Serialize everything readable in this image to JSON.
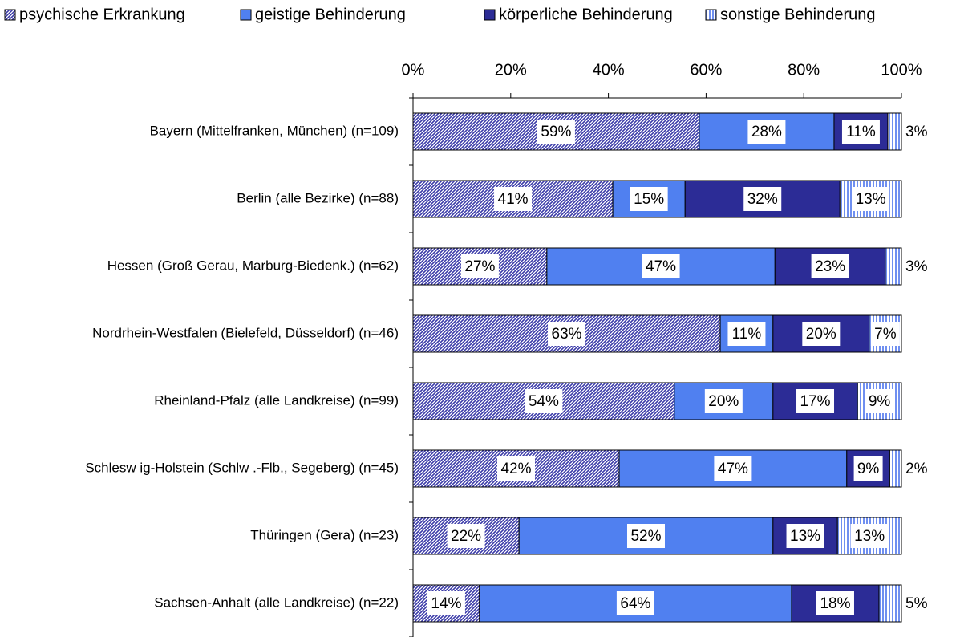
{
  "chart_data": {
    "type": "stacked-bar-horizontal",
    "categories": [
      "Bayern (Mittelfranken, München) (n=109)",
      "Berlin (alle Bezirke)  (n=88)",
      "Hessen (Groß Gerau, Marburg-Biedenk.) (n=62)",
      "Nordrhein-Westfalen (Bielefeld, Düsseldorf) (n=46)",
      "Rheinland-Pfalz (alle Landkreise)  (n=99)",
      "Schlesw ig-Holstein (Schlw .-Flb., Segeberg) (n=45)",
      "Thüringen (Gera) (n=23)",
      "Sachsen-Anhalt (alle Landkreise) (n=22)"
    ],
    "series": [
      {
        "name": "psychische Erkrankung",
        "color": "#3a3aa8",
        "pattern": "diagonal",
        "values": [
          58.6,
          40.9,
          27.4,
          62.9,
          53.5,
          42.2,
          21.7,
          13.6
        ],
        "value_labels": [
          "59%",
          "41%",
          "27%",
          "63%",
          "54%",
          "42%",
          "22%",
          "14%"
        ]
      },
      {
        "name": "geistige Behinderung",
        "color": "#5080f0",
        "pattern": "solid",
        "values": [
          27.6,
          14.8,
          46.7,
          10.8,
          20.2,
          46.6,
          52.0,
          63.9
        ],
        "value_labels": [
          "28%",
          "15%",
          "47%",
          "11%",
          "20%",
          "47%",
          "52%",
          "64%"
        ]
      },
      {
        "name": "körperliche Behinderung",
        "color": "#2c2c96",
        "pattern": "solid",
        "values": [
          11.0,
          31.7,
          22.6,
          19.7,
          17.3,
          8.8,
          13.2,
          17.9
        ],
        "value_labels": [
          "11%",
          "32%",
          "23%",
          "20%",
          "17%",
          "9%",
          "13%",
          "18%"
        ]
      },
      {
        "name": "sonstige Behinderung",
        "color": "#6f8ff0",
        "pattern": "vertical",
        "values": [
          2.8,
          12.6,
          3.3,
          6.6,
          9.0,
          2.4,
          13.1,
          4.6
        ],
        "value_labels": [
          "3%",
          "13%",
          "3%",
          "7%",
          "9%",
          "2%",
          "13%",
          "5%"
        ]
      }
    ],
    "xlim": [
      0,
      100
    ],
    "xticks": [
      {
        "value": 0,
        "label": "0%"
      },
      {
        "value": 20,
        "label": "20%"
      },
      {
        "value": 40,
        "label": "40%"
      },
      {
        "value": 60,
        "label": "60%"
      },
      {
        "value": 80,
        "label": "80%"
      },
      {
        "value": 100,
        "label": "100%"
      }
    ],
    "legend": "top"
  }
}
